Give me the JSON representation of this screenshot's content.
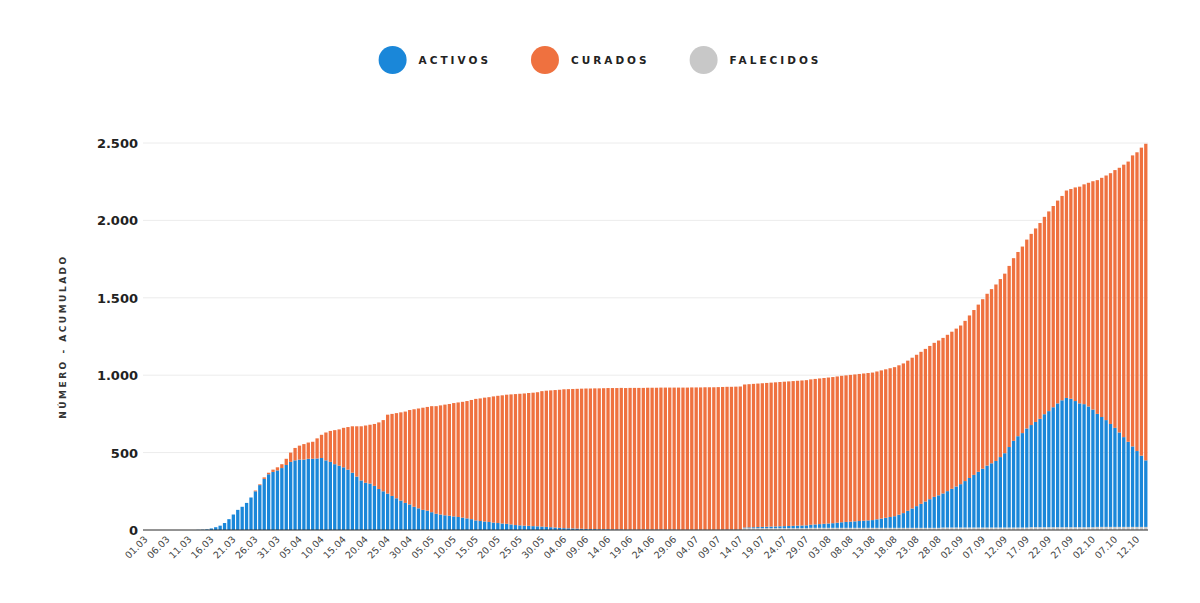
{
  "chart_data": {
    "type": "bar",
    "stacked": true,
    "grid": true,
    "legend": "top",
    "y_label": "NÚMERO - ACUMULADO",
    "ylim": [
      0,
      2500
    ],
    "yticks": [
      0,
      500,
      {
        "value": 1000,
        "label": "1.000"
      },
      {
        "value": 1500,
        "label": "1.500"
      },
      {
        "value": 2000,
        "label": "2.000"
      },
      {
        "value": 2500,
        "label": "2.500"
      }
    ],
    "categories": [
      "01.03",
      null,
      null,
      null,
      null,
      "06.03",
      null,
      null,
      null,
      null,
      "11.03",
      null,
      null,
      null,
      null,
      "16.03",
      null,
      null,
      null,
      null,
      "21.03",
      null,
      null,
      null,
      null,
      "26.03",
      null,
      null,
      null,
      null,
      "31.03",
      null,
      null,
      null,
      null,
      "05.04",
      null,
      null,
      null,
      null,
      "10.04",
      null,
      null,
      null,
      null,
      "15.04",
      null,
      null,
      null,
      null,
      "20.04",
      null,
      null,
      null,
      null,
      "25.04",
      null,
      null,
      null,
      null,
      "30.04",
      null,
      null,
      null,
      null,
      "05.05",
      null,
      null,
      null,
      null,
      "10.05",
      null,
      null,
      null,
      null,
      "15.05",
      null,
      null,
      null,
      null,
      "20.05",
      null,
      null,
      null,
      null,
      "25.05",
      null,
      null,
      null,
      null,
      "30.05",
      null,
      null,
      null,
      null,
      "04.06",
      null,
      null,
      null,
      null,
      "09.06",
      null,
      null,
      null,
      null,
      "14.06",
      null,
      null,
      null,
      null,
      "19.06",
      null,
      null,
      null,
      null,
      "24.06",
      null,
      null,
      null,
      null,
      "29.06",
      null,
      null,
      null,
      null,
      "04.07",
      null,
      null,
      null,
      null,
      "09.07",
      null,
      null,
      null,
      null,
      "14.07",
      null,
      null,
      null,
      null,
      "19.07",
      null,
      null,
      null,
      null,
      "24.07",
      null,
      null,
      null,
      null,
      "29.07",
      null,
      null,
      null,
      null,
      "03.08",
      null,
      null,
      null,
      null,
      "08.08",
      null,
      null,
      null,
      null,
      "13.08",
      null,
      null,
      null,
      null,
      "18.08",
      null,
      null,
      null,
      null,
      "23.08",
      null,
      null,
      null,
      null,
      "28.08",
      null,
      null,
      null,
      null,
      "02.09",
      null,
      null,
      null,
      null,
      "07.09",
      null,
      null,
      null,
      null,
      "12.09",
      null,
      null,
      null,
      null,
      "17.09",
      null,
      null,
      null,
      null,
      "22.09",
      null,
      null,
      null,
      null,
      "27.09",
      null,
      null,
      null,
      null,
      "02.10",
      null,
      null,
      null,
      null,
      "07.10",
      null,
      null,
      null,
      null,
      "12.10",
      null,
      null
    ],
    "series": [
      {
        "name": "ACTIVOS",
        "color": "#1a87d9",
        "values": [
          0,
          0,
          0,
          0,
          0,
          0,
          0,
          0,
          0,
          0,
          0,
          0,
          1,
          2,
          4,
          10,
          18,
          28,
          45,
          70,
          100,
          130,
          150,
          175,
          210,
          250,
          290,
          330,
          360,
          375,
          385,
          400,
          420,
          440,
          450,
          455,
          455,
          460,
          460,
          462,
          465,
          450,
          440,
          425,
          415,
          405,
          390,
          370,
          345,
          320,
          305,
          300,
          285,
          265,
          250,
          235,
          220,
          205,
          190,
          175,
          165,
          150,
          140,
          130,
          125,
          115,
          105,
          100,
          95,
          92,
          88,
          84,
          80,
          75,
          70,
          62,
          58,
          55,
          52,
          48,
          45,
          42,
          40,
          36,
          32,
          30,
          28,
          27,
          25,
          24,
          22,
          20,
          18,
          16,
          14,
          12,
          11,
          10,
          9,
          8,
          7,
          6,
          6,
          5,
          5,
          5,
          4,
          4,
          4,
          3,
          3,
          3,
          3,
          3,
          3,
          3,
          3,
          3,
          3,
          3,
          3,
          2,
          2,
          2,
          2,
          2,
          2,
          2,
          2,
          2,
          2,
          3,
          3,
          3,
          3,
          3,
          4,
          5,
          6,
          7,
          8,
          9,
          10,
          11,
          12,
          13,
          14,
          15,
          16,
          17,
          18,
          20,
          22,
          24,
          26,
          28,
          30,
          33,
          36,
          38,
          40,
          42,
          44,
          46,
          48,
          50,
          55,
          60,
          65,
          70,
          75,
          85,
          95,
          110,
          125,
          140,
          155,
          170,
          185,
          200,
          210,
          220,
          235,
          250,
          265,
          280,
          300,
          320,
          340,
          360,
          380,
          400,
          415,
          430,
          455,
          480,
          520,
          560,
          590,
          610,
          640,
          660,
          680,
          700,
          730,
          750,
          775,
          800,
          820,
          835,
          830,
          815,
          800,
          795,
          780,
          760,
          730,
          710,
          690,
          665,
          640,
          610,
          580,
          550,
          520,
          490,
          460,
          430
        ]
      },
      {
        "name": "CURADOS",
        "color": "#ef713f",
        "values": [
          0,
          0,
          0,
          0,
          0,
          0,
          0,
          0,
          0,
          0,
          0,
          0,
          0,
          0,
          0,
          0,
          0,
          0,
          0,
          0,
          0,
          0,
          0,
          0,
          0,
          5,
          5,
          10,
          10,
          15,
          20,
          25,
          40,
          60,
          80,
          90,
          100,
          105,
          110,
          130,
          150,
          180,
          200,
          220,
          235,
          255,
          275,
          300,
          325,
          350,
          370,
          380,
          400,
          430,
          460,
          510,
          530,
          550,
          570,
          590,
          610,
          630,
          645,
          660,
          670,
          685,
          695,
          705,
          715,
          722,
          732,
          740,
          748,
          758,
          770,
          785,
          792,
          800,
          806,
          815,
          822,
          828,
          834,
          840,
          846,
          850,
          854,
          858,
          862,
          866,
          875,
          880,
          884,
          888,
          892,
          897,
          899,
          901,
          903,
          905,
          907,
          908,
          909,
          910,
          911,
          912,
          913,
          913,
          914,
          914,
          915,
          915,
          915,
          915,
          916,
          916,
          916,
          917,
          917,
          917,
          917,
          918,
          918,
          918,
          919,
          919,
          919,
          920,
          920,
          920,
          921,
          921,
          922,
          922,
          923,
          924,
          924,
          925,
          926,
          927,
          928,
          929,
          930,
          931,
          932,
          933,
          934,
          935,
          936,
          937,
          938,
          939,
          940,
          941,
          942,
          943,
          944,
          945,
          946,
          947,
          948,
          949,
          950,
          951,
          952,
          953,
          955,
          957,
          959,
          961,
          963,
          965,
          967,
          970,
          974,
          978,
          982,
          986,
          990,
          995,
          1000,
          1005,
          1010,
          1015,
          1020,
          1025,
          1035,
          1050,
          1065,
          1080,
          1095,
          1110,
          1125,
          1140,
          1150,
          1160,
          1170,
          1180,
          1190,
          1205,
          1220,
          1235,
          1250,
          1265,
          1275,
          1290,
          1300,
          1310,
          1320,
          1340,
          1355,
          1380,
          1400,
          1420,
          1445,
          1475,
          1510,
          1545,
          1580,
          1620,
          1665,
          1710,
          1760,
          1810,
          1880,
          1930,
          1990,
          2045
        ]
      },
      {
        "name": "FALECIDOS",
        "color": "#c8c8c8",
        "values": [
          0,
          0,
          0,
          0,
          0,
          0,
          0,
          0,
          0,
          0,
          0,
          0,
          0,
          0,
          0,
          0,
          0,
          0,
          0,
          0,
          0,
          0,
          0,
          0,
          0,
          0,
          0,
          0,
          0,
          0,
          0,
          0,
          0,
          0,
          0,
          0,
          0,
          0,
          0,
          0,
          0,
          0,
          0,
          0,
          0,
          0,
          0,
          0,
          0,
          0,
          0,
          0,
          0,
          0,
          0,
          0,
          0,
          0,
          0,
          0,
          0,
          0,
          0,
          0,
          0,
          0,
          0,
          0,
          0,
          0,
          0,
          0,
          0,
          0,
          0,
          0,
          0,
          0,
          0,
          0,
          0,
          0,
          0,
          0,
          0,
          0,
          0,
          0,
          0,
          0,
          0,
          0,
          0,
          0,
          0,
          0,
          0,
          0,
          0,
          0,
          0,
          0,
          0,
          0,
          0,
          0,
          0,
          0,
          0,
          0,
          0,
          0,
          0,
          0,
          0,
          0,
          0,
          0,
          0,
          0,
          0,
          0,
          0,
          0,
          0,
          0,
          0,
          0,
          0,
          0,
          0,
          0,
          0,
          0,
          0,
          0,
          12,
          12,
          12,
          12,
          12,
          12,
          12,
          12,
          12,
          12,
          12,
          12,
          12,
          12,
          12,
          14,
          14,
          14,
          14,
          14,
          14,
          14,
          14,
          14,
          14,
          14,
          14,
          14,
          14,
          14,
          14,
          14,
          14,
          14,
          14,
          14,
          14,
          14,
          14,
          14,
          14,
          14,
          14,
          14,
          14,
          16,
          16,
          16,
          16,
          16,
          16,
          16,
          16,
          16,
          16,
          16,
          16,
          16,
          16,
          16,
          16,
          16,
          16,
          16,
          16,
          18,
          18,
          18,
          18,
          18,
          18,
          18,
          18,
          18,
          18,
          18,
          18,
          18,
          18,
          18,
          20,
          20,
          20,
          20,
          20,
          20,
          20,
          20,
          20,
          20,
          20,
          20
        ]
      }
    ]
  }
}
